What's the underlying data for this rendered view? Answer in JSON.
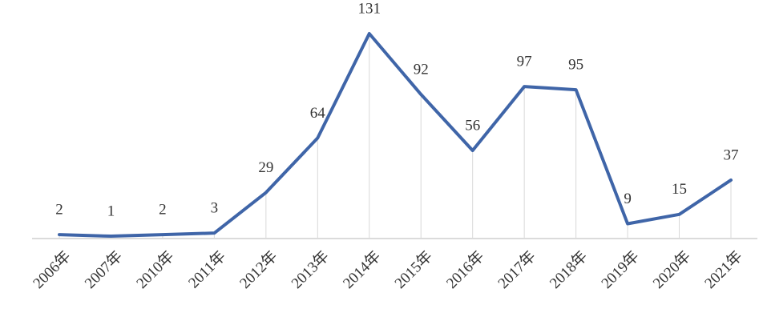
{
  "chart_data": {
    "type": "line",
    "categories": [
      "2006年",
      "2007年",
      "2010年",
      "2011年",
      "2012年",
      "2013年",
      "2014年",
      "2015年",
      "2016年",
      "2017年",
      "2018年",
      "2019年",
      "2020年",
      "2021年"
    ],
    "values": [
      2,
      1,
      2,
      3,
      29,
      64,
      131,
      92,
      56,
      97,
      95,
      9,
      15,
      37
    ],
    "color": "#3f65a8"
  }
}
